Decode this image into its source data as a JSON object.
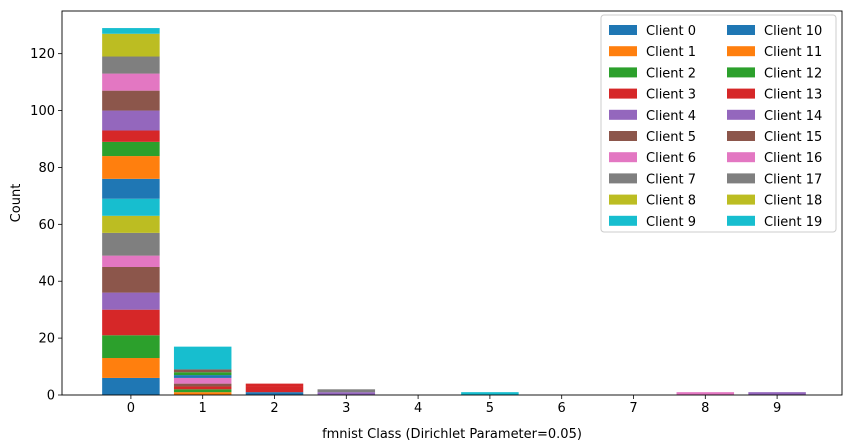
{
  "chart_data": {
    "type": "bar",
    "stacked": true,
    "title": "",
    "xlabel": "fmnist Class (Dirichlet Parameter=0.05)",
    "ylabel": "Count",
    "categories": [
      "0",
      "1",
      "2",
      "3",
      "4",
      "5",
      "6",
      "7",
      "8",
      "9"
    ],
    "ylim": [
      0,
      135
    ],
    "yticks": [
      0,
      20,
      40,
      60,
      80,
      100,
      120
    ],
    "grid": false,
    "legend_placement": "top-right",
    "legend_columns": 2,
    "series": [
      {
        "name": "Client 0",
        "color": "#1f77b4",
        "values": [
          6,
          0,
          1,
          0,
          0,
          0,
          0,
          0,
          0,
          0
        ]
      },
      {
        "name": "Client 1",
        "color": "#ff7f0e",
        "values": [
          7,
          1,
          0,
          0,
          0,
          0,
          0,
          0,
          0,
          0
        ]
      },
      {
        "name": "Client 2",
        "color": "#2ca02c",
        "values": [
          8,
          1,
          0,
          0,
          0,
          0,
          0,
          0,
          0,
          0
        ]
      },
      {
        "name": "Client 3",
        "color": "#d62728",
        "values": [
          9,
          1,
          2,
          0,
          0,
          0,
          0,
          0,
          0,
          0
        ]
      },
      {
        "name": "Client 4",
        "color": "#9467bd",
        "values": [
          6,
          0,
          0,
          1,
          0,
          0,
          0,
          0,
          0,
          0
        ]
      },
      {
        "name": "Client 5",
        "color": "#8c564b",
        "values": [
          9,
          1,
          0,
          0,
          0,
          0,
          0,
          0,
          0,
          0
        ]
      },
      {
        "name": "Client 6",
        "color": "#e377c2",
        "values": [
          4,
          2,
          0,
          0,
          0,
          0,
          0,
          0,
          0,
          0
        ]
      },
      {
        "name": "Client 7",
        "color": "#7f7f7f",
        "values": [
          8,
          0,
          0,
          1,
          0,
          0,
          0,
          0,
          0,
          0
        ]
      },
      {
        "name": "Client 8",
        "color": "#bcbd22",
        "values": [
          6,
          0,
          0,
          0,
          0,
          0,
          0,
          0,
          0,
          0
        ]
      },
      {
        "name": "Client 9",
        "color": "#17becf",
        "values": [
          6,
          0,
          0,
          0,
          0,
          0,
          0,
          0,
          0,
          0
        ]
      },
      {
        "name": "Client 10",
        "color": "#1f77b4",
        "values": [
          7,
          1,
          0,
          0,
          0,
          0,
          0,
          0,
          0,
          0
        ]
      },
      {
        "name": "Client 11",
        "color": "#ff7f0e",
        "values": [
          8,
          0,
          0,
          0,
          0,
          0,
          0,
          0,
          0,
          0
        ]
      },
      {
        "name": "Client 12",
        "color": "#2ca02c",
        "values": [
          5,
          1,
          0,
          0,
          0,
          0,
          0,
          0,
          0,
          0
        ]
      },
      {
        "name": "Client 13",
        "color": "#d62728",
        "values": [
          4,
          0,
          1,
          0,
          0,
          0,
          0,
          0,
          0,
          0
        ]
      },
      {
        "name": "Client 14",
        "color": "#9467bd",
        "values": [
          7,
          0,
          0,
          0,
          0,
          0,
          0,
          0,
          0,
          1
        ]
      },
      {
        "name": "Client 15",
        "color": "#8c564b",
        "values": [
          7,
          1,
          0,
          0,
          0,
          0,
          0,
          0,
          0,
          0
        ]
      },
      {
        "name": "Client 16",
        "color": "#e377c2",
        "values": [
          6,
          0,
          0,
          0,
          0,
          0,
          0,
          0,
          1,
          0
        ]
      },
      {
        "name": "Client 17",
        "color": "#7f7f7f",
        "values": [
          6,
          0,
          0,
          0,
          0,
          0,
          0,
          0,
          0,
          0
        ]
      },
      {
        "name": "Client 18",
        "color": "#bcbd22",
        "values": [
          8,
          0,
          0,
          0,
          0,
          0,
          0,
          0,
          0,
          0
        ]
      },
      {
        "name": "Client 19",
        "color": "#17becf",
        "values": [
          2,
          8,
          0,
          0,
          0,
          1,
          0,
          0,
          0,
          0
        ]
      }
    ]
  }
}
